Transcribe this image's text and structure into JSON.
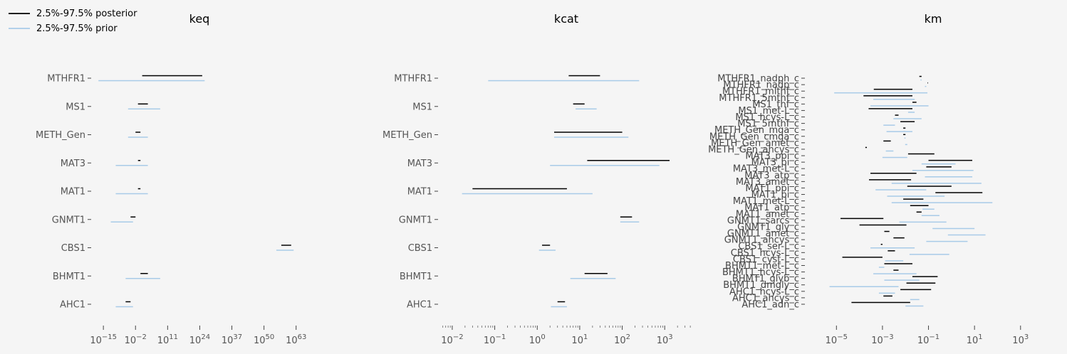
{
  "legend": {
    "posterior_label": "2.5%-97.5% posterior",
    "prior_label": "2.5%-97.5% prior",
    "posterior_color": "#000000",
    "prior_color": "#a8cbe8"
  },
  "chart_data": [
    {
      "type": "interval",
      "title": "keq",
      "xscale": "log10",
      "xlim_exp": [
        -18.5,
        70
      ],
      "tick_exponents": [
        -15,
        -2,
        11,
        24,
        37,
        50,
        63
      ],
      "tick_labels": [
        "10^-15",
        "10^-2",
        "10^11",
        "10^24",
        "10^37",
        "10^50",
        "10^63"
      ],
      "categories": [
        "MTHFR1",
        "MS1",
        "METH_Gen",
        "MAT3",
        "MAT1",
        "GNMT1",
        "CBS1",
        "BHMT1",
        "AHC1"
      ],
      "posterior": [
        [
          5,
          1e+25
        ],
        [
          0.1,
          1000
        ],
        [
          0.01,
          1
        ],
        [
          0.1,
          1
        ],
        [
          0.1,
          1
        ],
        [
          0.0001,
          0.01
        ],
        [
          1e+57,
          1e+61
        ],
        [
          1,
          1000
        ],
        [
          1e-06,
          0.0001
        ]
      ],
      "prior": [
        [
          1e-17,
          1e+26
        ],
        [
          1e-05,
          100000000.0
        ],
        [
          1e-05,
          1000
        ],
        [
          1e-10,
          1000
        ],
        [
          1e-10,
          1000
        ],
        [
          1e-12,
          0.001
        ],
        [
          1e+55,
          1e+62
        ],
        [
          1e-06,
          100000000.0
        ],
        [
          1e-10,
          0.001
        ]
      ]
    },
    {
      "type": "interval",
      "title": "kcat",
      "xscale": "log10",
      "xlim_exp": [
        -2.25,
        3.65
      ],
      "tick_exponents": [
        -2,
        -1,
        0,
        1,
        2,
        3
      ],
      "tick_labels": [
        "10^-2",
        "10^-1",
        "10^0",
        "10^1",
        "10^2",
        "10^3"
      ],
      "categories": [
        "MTHFR1",
        "MS1",
        "METH_Gen",
        "MAT3",
        "MAT1",
        "GNMT1",
        "CBS1",
        "BHMT1",
        "AHC1"
      ],
      "posterior": [
        [
          5.5,
          30
        ],
        [
          7,
          13
        ],
        [
          2.5,
          100
        ],
        [
          15,
          1300
        ],
        [
          0.03,
          5
        ],
        [
          90,
          170
        ],
        [
          1.3,
          2
        ],
        [
          13,
          45
        ],
        [
          3,
          4.5
        ]
      ],
      "prior": [
        [
          0.07,
          250
        ],
        [
          8,
          25
        ],
        [
          2.5,
          140
        ],
        [
          2,
          750
        ],
        [
          0.017,
          20
        ],
        [
          90,
          250
        ],
        [
          1.1,
          2.7
        ],
        [
          6,
          70
        ],
        [
          2.1,
          5
        ]
      ]
    },
    {
      "type": "interval",
      "title": "km",
      "xscale": "log10",
      "xlim_exp": [
        -6,
        4.4
      ],
      "tick_exponents": [
        -5,
        -3,
        -1,
        1,
        3
      ],
      "tick_labels": [
        "10^-5",
        "10^-3",
        "10^-1",
        "10^1",
        "10^3"
      ],
      "categories": [
        "MTHFR1_nadph_c",
        "MTHFR1_nadp_c",
        "MTHFR1_mlthf_c",
        "MTHFR1_5mthf_c",
        "MS1_thf_c",
        "MS1_met-L_c",
        "MS1_hcys-L_c",
        "MS1_5mthf_c",
        "METH_Gen_mga_c",
        "METH_Gen_cmga_c",
        "METH_Gen_amet_c",
        "METH_Gen_ahcys_c",
        "MAT3_ppi_c",
        "MAT3_pi_c",
        "MAT3_met-L_c",
        "MAT3_atp_c",
        "MAT3_amet_c",
        "MAT1_ppi_c",
        "MAT1_pi_c",
        "MAT1_met-L_c",
        "MAT1_atp_c",
        "MAT1_amet_c",
        "GNMT1_sarcs_c",
        "GNMT1_gly_c",
        "GNMT1_amet_c",
        "GNMT1_ahcys_c",
        "CBS1_ser-L_c",
        "CBS1_hcys-L_c",
        "CBS1_cyst-L_c",
        "BHMT1_met-L_c",
        "BHMT1_hcys-L_c",
        "BHMT1_glyb_c",
        "BHMT1_dmgly_c",
        "AHC1_hcys-L_c",
        "AHC1_ahcys_c",
        "AHC1_adn_c"
      ],
      "posterior": [
        [
          0.04,
          0.05
        ],
        [
          0.09,
          0.095
        ],
        [
          0.00042,
          0.02
        ],
        [
          0.00015,
          0.02
        ],
        [
          0.02,
          0.03
        ],
        [
          0.00025,
          0.02
        ],
        [
          0.0035,
          0.005
        ],
        [
          0.006,
          0.025
        ],
        [
          0.008,
          0.01
        ],
        [
          0.008,
          0.01
        ],
        [
          0.0011,
          0.0023
        ],
        [
          0.00021,
          0.00018
        ],
        [
          0.013,
          0.18
        ],
        [
          0.1,
          8
        ],
        [
          0.08,
          1
        ],
        [
          0.0003,
          0.03
        ],
        [
          0.00026,
          0.0175
        ],
        [
          0.012,
          1
        ],
        [
          0.2,
          22
        ],
        [
          0.008,
          0.06
        ],
        [
          0.016,
          0.1
        ],
        [
          0.03,
          0.05
        ],
        [
          1.5e-05,
          0.0011
        ],
        [
          0.0001,
          0.011
        ],
        [
          0.0012,
          0.002
        ],
        [
          0.003,
          0.009
        ],
        [
          0.00085,
          0.001
        ],
        [
          0.0017,
          0.0035
        ],
        [
          1.8e-05,
          0.001
        ],
        [
          0.0012,
          0.02
        ],
        [
          0.003,
          0.005
        ],
        [
          0.02,
          0.25
        ],
        [
          0.011,
          0.2
        ],
        [
          0.006,
          0.13
        ],
        [
          0.0011,
          0.0027
        ],
        [
          4.5e-05,
          0.016
        ]
      ],
      "prior": [
        [
          0.045,
          0.05
        ],
        [
          0.07,
          0.08
        ],
        [
          8e-06,
          0.09
        ],
        [
          0.0004,
          0.025
        ],
        [
          0.0003,
          0.1
        ],
        [
          0.013,
          0.025
        ],
        [
          0.003,
          0.05
        ],
        [
          0.0011,
          0.0035
        ],
        [
          0.0015,
          0.02
        ],
        [
          0.009,
          0.01
        ],
        [
          0.0097,
          0.012
        ],
        [
          0.0014,
          0.003
        ],
        [
          0.001,
          0.012
        ],
        [
          0.05,
          1.5
        ],
        [
          0.02,
          9
        ],
        [
          0.07,
          8
        ],
        [
          0.0025,
          20
        ],
        [
          0.0005,
          0.08
        ],
        [
          0.0016,
          0.5
        ],
        [
          0.0025,
          60
        ],
        [
          0.055,
          0.18
        ],
        [
          0.05,
          0.3
        ],
        [
          0.0054,
          0.6
        ],
        [
          0.15,
          10
        ],
        [
          0.7,
          30
        ],
        [
          0.08,
          5
        ],
        [
          0.0003,
          0.025
        ],
        [
          0.015,
          0.8
        ],
        [
          0.0013,
          0.008
        ],
        [
          0.0007,
          0.0012
        ],
        [
          0.0004,
          0.03
        ],
        [
          0.0012,
          0.04
        ],
        [
          5e-06,
          0.005
        ],
        [
          0.0007,
          0.0035
        ],
        [
          0.016,
          0.04
        ],
        [
          0.01,
          0.06
        ]
      ]
    }
  ]
}
